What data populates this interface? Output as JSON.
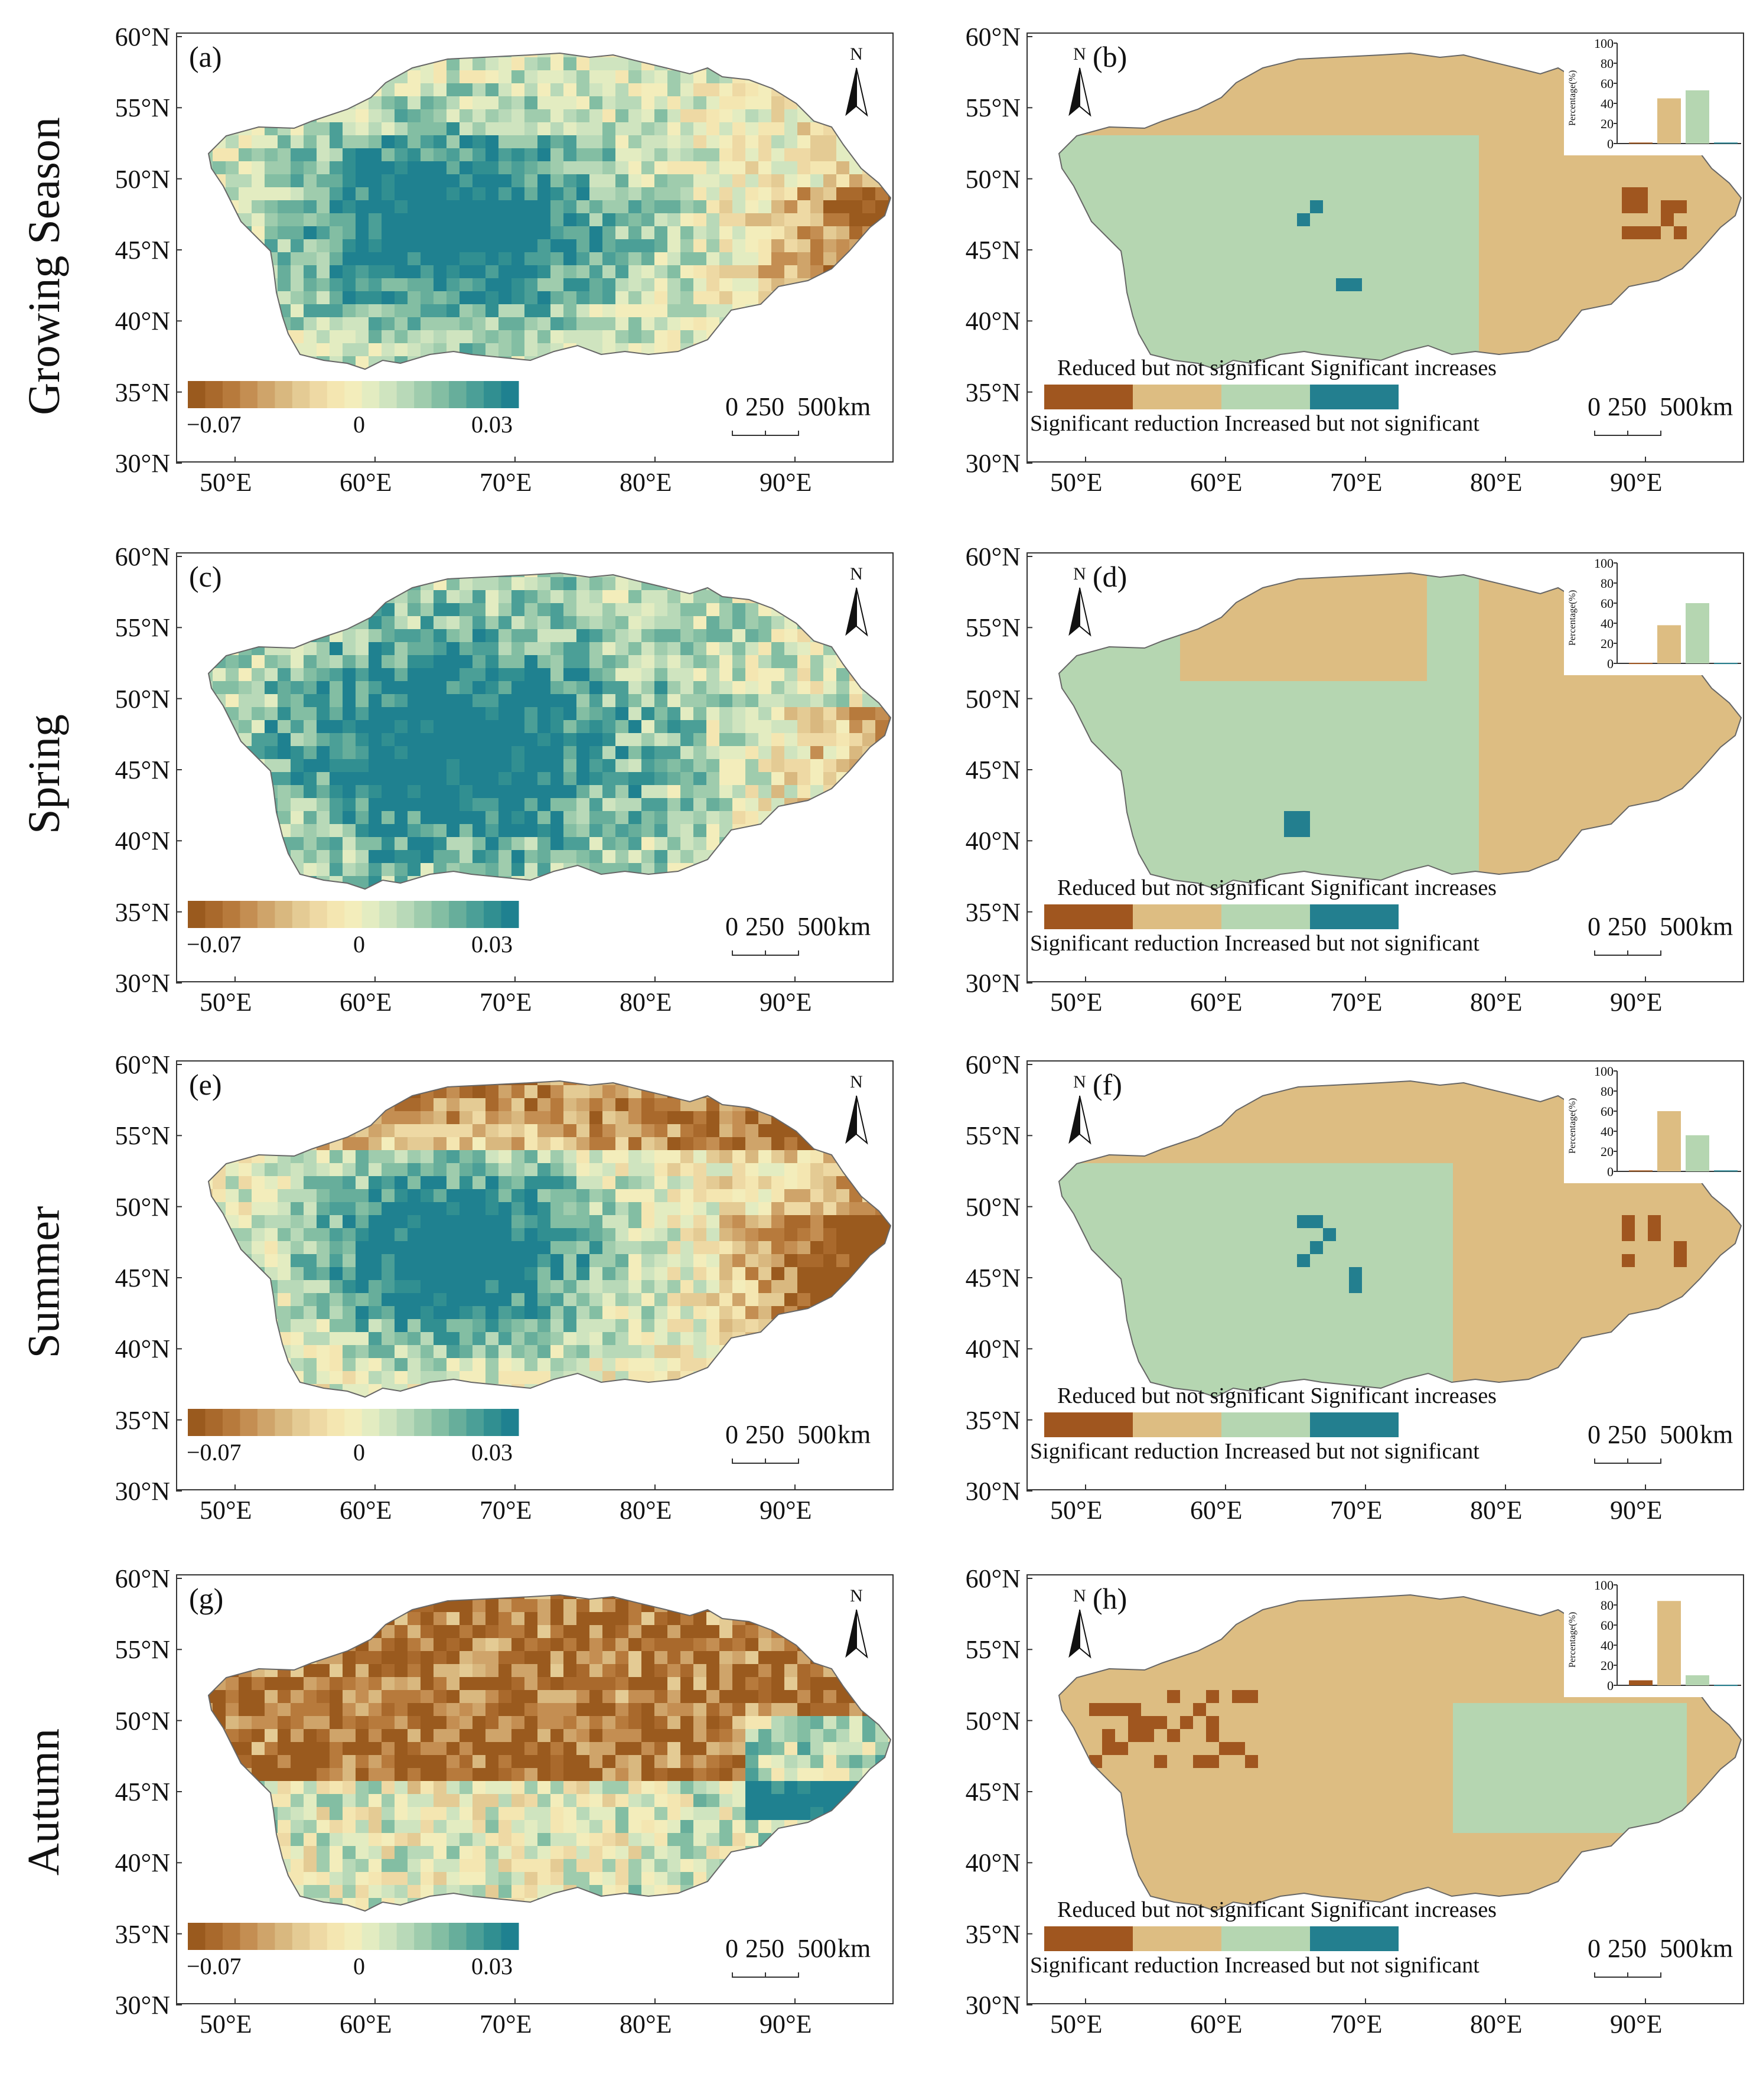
{
  "row_labels": [
    "Growing Season",
    "Spring",
    "Summer",
    "Autumn"
  ],
  "panel_labels": {
    "trend": [
      "(a)",
      "(c)",
      "(e)",
      "(g)"
    ],
    "significance": [
      "(b)",
      "(d)",
      "(f)",
      "(h)"
    ]
  },
  "axes": {
    "lat_ticks": [
      "60°N",
      "55°N",
      "50°N",
      "45°N",
      "40°N",
      "35°N",
      "30°N"
    ],
    "lon_ticks": [
      "50°E",
      "60°E",
      "70°E",
      "80°E",
      "90°E"
    ]
  },
  "north_arrow": "N",
  "scale_bar": {
    "label_0": "0",
    "label_250": "250",
    "label_500": "500",
    "unit": "km"
  },
  "colorbar": {
    "min_label": "−0.07",
    "mid_label": "0",
    "max_label": "0.03",
    "colors": [
      "#9a5a1e",
      "#a9692c",
      "#b77a3c",
      "#c48e52",
      "#cfa46a",
      "#d9b87f",
      "#e4cb94",
      "#eed9a4",
      "#f4e6b1",
      "#f3edbb",
      "#e3ecc1",
      "#cfe4bf",
      "#b8d9b8",
      "#9fccad",
      "#83bea3",
      "#67ae9b",
      "#4b9f97",
      "#318f91",
      "#1f8190"
    ]
  },
  "legend": {
    "title": "Reduced but not significant Significant increases",
    "subtitle": "Significant reduction Increased but not significant",
    "categories": [
      "Significant reduction",
      "Reduced but not significant",
      "Increased but not significant",
      "Significant increases"
    ],
    "colors": [
      "#a0561f",
      "#ddbd82",
      "#b5d6b1",
      "#237f8f"
    ]
  },
  "inset": {
    "ylabel": "Percentage(%)",
    "ticks": [
      "100",
      "80",
      "60",
      "40",
      "20",
      "0"
    ],
    "bar_values": [
      [
        1,
        45,
        53,
        1
      ],
      [
        0.5,
        38,
        60,
        0.5
      ],
      [
        1,
        60,
        36,
        1
      ],
      [
        5,
        84,
        10,
        0.5
      ]
    ]
  },
  "colors": {
    "trend_positive": "#22858f",
    "trend_negative": "#9a5a1e",
    "frame": "#333333"
  }
}
